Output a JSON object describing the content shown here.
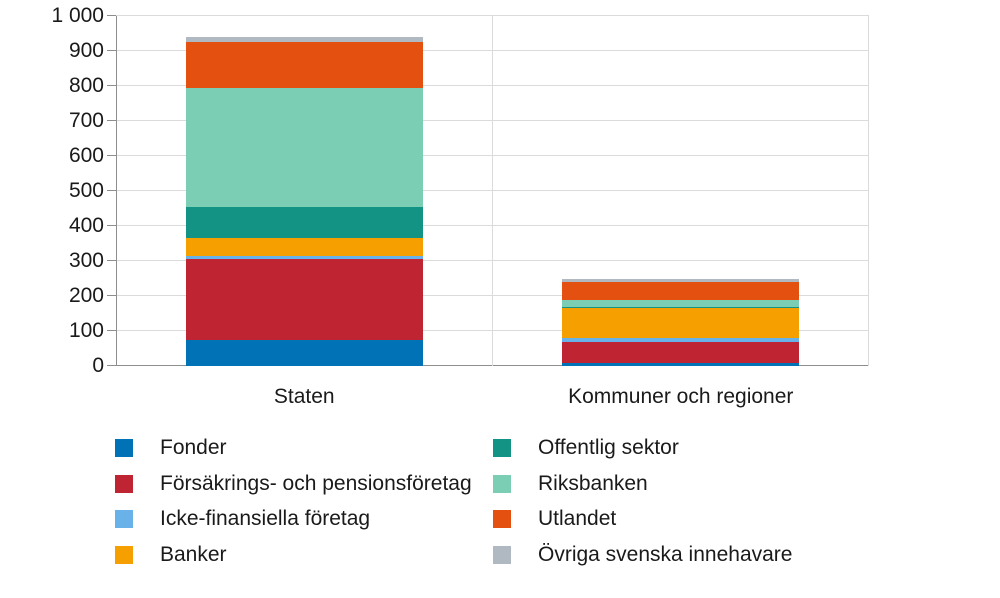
{
  "chart_data": {
    "type": "bar",
    "variant": "stacked",
    "title": "",
    "categories": [
      "Staten",
      "Kommuner och regioner"
    ],
    "series": [
      {
        "name": "Fonder",
        "color": "#0072b5",
        "values": [
          75,
          10
        ]
      },
      {
        "name": "Försäkrings- och pensionsföretag",
        "color": "#bf2433",
        "values": [
          230,
          60
        ]
      },
      {
        "name": "Icke-finansiella företag",
        "color": "#69b2e9",
        "values": [
          10,
          10
        ]
      },
      {
        "name": "Banker",
        "color": "#f5a000",
        "values": [
          50,
          85
        ]
      },
      {
        "name": "Offentlig sektor",
        "color": "#129383",
        "values": [
          90,
          5
        ]
      },
      {
        "name": "Riksbanken",
        "color": "#7bceb4",
        "values": [
          340,
          20
        ]
      },
      {
        "name": "Utlandet",
        "color": "#e4500f",
        "values": [
          130,
          50
        ]
      },
      {
        "name": "Övriga svenska innehavare",
        "color": "#b0b9c1",
        "values": [
          15,
          10
        ]
      }
    ],
    "xlabel": "",
    "ylabel": "",
    "ylim": [
      0,
      1000
    ],
    "ytick_step": 100,
    "ytick_labels": [
      "0",
      "100",
      "200",
      "300",
      "400",
      "500",
      "600",
      "700",
      "800",
      "900",
      "1 000"
    ],
    "grid": true,
    "legend_position": "bottom",
    "legend_columns": 2
  },
  "colors": {
    "background": "#ffffff",
    "gridline": "#dbdbdb",
    "axis": "#8e8e8e",
    "text": "#1a1a1a"
  }
}
